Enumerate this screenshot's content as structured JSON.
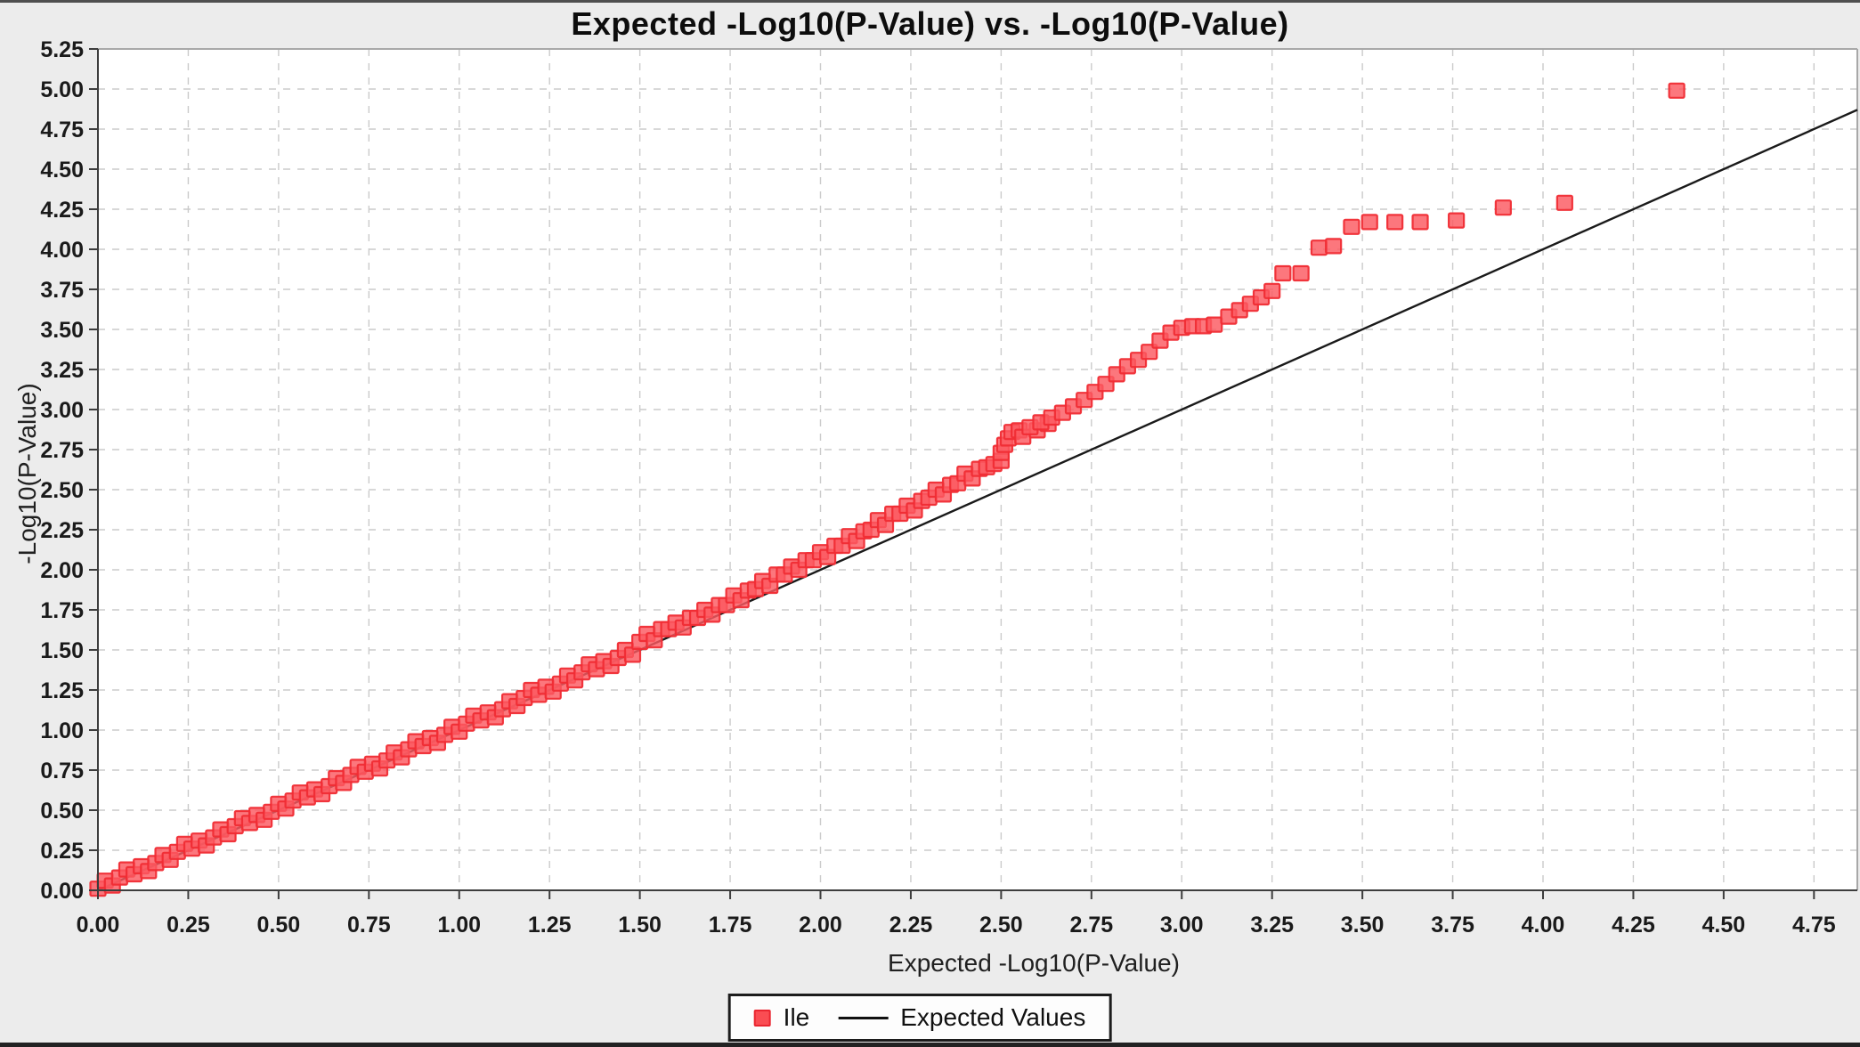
{
  "chart_data": {
    "type": "scatter",
    "title": "Expected -Log10(P-Value) vs. -Log10(P-Value)",
    "xlabel": "Expected -Log10(P-Value)",
    "ylabel": "-Log10(P-Value)",
    "xlim": [
      0,
      4.87
    ],
    "ylim": [
      0,
      5.25
    ],
    "grid": true,
    "x_tick_labels": [
      "0.00",
      "0.25",
      "0.50",
      "0.75",
      "1.00",
      "1.25",
      "1.50",
      "1.75",
      "2.00",
      "2.25",
      "2.50",
      "2.75",
      "3.00",
      "3.25",
      "3.50",
      "3.75",
      "4.00",
      "4.25",
      "4.50",
      "4.75"
    ],
    "y_tick_labels": [
      "0.00",
      "0.25",
      "0.50",
      "0.75",
      "1.00",
      "1.25",
      "1.50",
      "1.75",
      "2.00",
      "2.25",
      "2.50",
      "2.75",
      "3.00",
      "3.25",
      "3.50",
      "3.75",
      "4.00",
      "4.25",
      "4.50",
      "4.75",
      "5.00",
      "5.25"
    ],
    "legend": {
      "position": "bottom",
      "entries": [
        {
          "label": "Ile",
          "type": "marker"
        },
        {
          "label": "Expected Values",
          "type": "line"
        }
      ]
    },
    "colors": {
      "marker_fill": "#fb5960",
      "marker_edge": "#f02c34",
      "expected_line": "#1a1a1a",
      "grid": "#cbcbcb",
      "axis": "#3d3d3d",
      "frame": "#a8a8a8",
      "plot_bg": "#ffffff",
      "outer_bg": "#ececec"
    },
    "series": [
      {
        "name": "Ile",
        "type": "scatter",
        "marker": "square",
        "points": [
          [
            0.0,
            0.01
          ],
          [
            0.02,
            0.06
          ],
          [
            0.04,
            0.03
          ],
          [
            0.06,
            0.08
          ],
          [
            0.08,
            0.13
          ],
          [
            0.1,
            0.1
          ],
          [
            0.12,
            0.15
          ],
          [
            0.14,
            0.12
          ],
          [
            0.16,
            0.17
          ],
          [
            0.18,
            0.22
          ],
          [
            0.2,
            0.19
          ],
          [
            0.22,
            0.24
          ],
          [
            0.24,
            0.29
          ],
          [
            0.26,
            0.26
          ],
          [
            0.28,
            0.31
          ],
          [
            0.3,
            0.28
          ],
          [
            0.32,
            0.33
          ],
          [
            0.34,
            0.38
          ],
          [
            0.36,
            0.35
          ],
          [
            0.38,
            0.4
          ],
          [
            0.4,
            0.45
          ],
          [
            0.42,
            0.42
          ],
          [
            0.44,
            0.47
          ],
          [
            0.46,
            0.44
          ],
          [
            0.48,
            0.49
          ],
          [
            0.5,
            0.54
          ],
          [
            0.52,
            0.51
          ],
          [
            0.54,
            0.56
          ],
          [
            0.56,
            0.61
          ],
          [
            0.58,
            0.58
          ],
          [
            0.6,
            0.63
          ],
          [
            0.62,
            0.6
          ],
          [
            0.64,
            0.65
          ],
          [
            0.66,
            0.7
          ],
          [
            0.68,
            0.67
          ],
          [
            0.7,
            0.72
          ],
          [
            0.72,
            0.77
          ],
          [
            0.74,
            0.74
          ],
          [
            0.76,
            0.79
          ],
          [
            0.78,
            0.76
          ],
          [
            0.8,
            0.81
          ],
          [
            0.82,
            0.86
          ],
          [
            0.84,
            0.83
          ],
          [
            0.86,
            0.88
          ],
          [
            0.88,
            0.93
          ],
          [
            0.9,
            0.9
          ],
          [
            0.92,
            0.95
          ],
          [
            0.94,
            0.92
          ],
          [
            0.96,
            0.97
          ],
          [
            0.98,
            1.02
          ],
          [
            1.0,
            0.99
          ],
          [
            1.02,
            1.04
          ],
          [
            1.04,
            1.09
          ],
          [
            1.06,
            1.06
          ],
          [
            1.08,
            1.11
          ],
          [
            1.1,
            1.08
          ],
          [
            1.12,
            1.13
          ],
          [
            1.14,
            1.18
          ],
          [
            1.16,
            1.15
          ],
          [
            1.18,
            1.2
          ],
          [
            1.2,
            1.25
          ],
          [
            1.22,
            1.22
          ],
          [
            1.24,
            1.27
          ],
          [
            1.26,
            1.24
          ],
          [
            1.28,
            1.29
          ],
          [
            1.3,
            1.34
          ],
          [
            1.32,
            1.31
          ],
          [
            1.34,
            1.36
          ],
          [
            1.36,
            1.41
          ],
          [
            1.38,
            1.38
          ],
          [
            1.4,
            1.43
          ],
          [
            1.42,
            1.4
          ],
          [
            1.44,
            1.45
          ],
          [
            1.46,
            1.5
          ],
          [
            1.48,
            1.47
          ],
          [
            1.5,
            1.55
          ],
          [
            1.52,
            1.6
          ],
          [
            1.54,
            1.56
          ],
          [
            1.56,
            1.63
          ],
          [
            1.58,
            1.63
          ],
          [
            1.6,
            1.67
          ],
          [
            1.62,
            1.64
          ],
          [
            1.64,
            1.7
          ],
          [
            1.66,
            1.7
          ],
          [
            1.68,
            1.75
          ],
          [
            1.7,
            1.72
          ],
          [
            1.72,
            1.78
          ],
          [
            1.74,
            1.78
          ],
          [
            1.76,
            1.84
          ],
          [
            1.78,
            1.81
          ],
          [
            1.8,
            1.87
          ],
          [
            1.82,
            1.88
          ],
          [
            1.84,
            1.93
          ],
          [
            1.86,
            1.9
          ],
          [
            1.88,
            1.97
          ],
          [
            1.9,
            1.97
          ],
          [
            1.92,
            2.02
          ],
          [
            1.94,
            2.0
          ],
          [
            1.96,
            2.06
          ],
          [
            1.98,
            2.06
          ],
          [
            2.0,
            2.11
          ],
          [
            2.02,
            2.08
          ],
          [
            2.04,
            2.15
          ],
          [
            2.06,
            2.15
          ],
          [
            2.08,
            2.21
          ],
          [
            2.1,
            2.18
          ],
          [
            2.12,
            2.24
          ],
          [
            2.14,
            2.25
          ],
          [
            2.16,
            2.31
          ],
          [
            2.18,
            2.28
          ],
          [
            2.2,
            2.35
          ],
          [
            2.22,
            2.35
          ],
          [
            2.24,
            2.4
          ],
          [
            2.26,
            2.37
          ],
          [
            2.28,
            2.43
          ],
          [
            2.3,
            2.45
          ],
          [
            2.32,
            2.5
          ],
          [
            2.34,
            2.47
          ],
          [
            2.36,
            2.53
          ],
          [
            2.38,
            2.54
          ],
          [
            2.4,
            2.6
          ],
          [
            2.42,
            2.57
          ],
          [
            2.44,
            2.63
          ],
          [
            2.46,
            2.64
          ],
          [
            2.48,
            2.66
          ],
          [
            2.5,
            2.68
          ],
          [
            2.5,
            2.73
          ],
          [
            2.51,
            2.78
          ],
          [
            2.52,
            2.82
          ],
          [
            2.53,
            2.86
          ],
          [
            2.55,
            2.87
          ],
          [
            2.56,
            2.83
          ],
          [
            2.6,
            2.87
          ],
          [
            2.63,
            2.91
          ],
          [
            2.58,
            2.89
          ],
          [
            2.61,
            2.92
          ],
          [
            2.64,
            2.95
          ],
          [
            2.67,
            2.98
          ],
          [
            2.7,
            3.02
          ],
          [
            2.73,
            3.06
          ],
          [
            2.76,
            3.11
          ],
          [
            2.79,
            3.16
          ],
          [
            2.82,
            3.22
          ],
          [
            2.85,
            3.27
          ],
          [
            2.88,
            3.31
          ],
          [
            2.91,
            3.36
          ],
          [
            2.94,
            3.43
          ],
          [
            2.97,
            3.48
          ],
          [
            3.0,
            3.51
          ],
          [
            3.03,
            3.52
          ],
          [
            3.06,
            3.52
          ],
          [
            3.09,
            3.53
          ],
          [
            3.13,
            3.58
          ],
          [
            3.16,
            3.62
          ],
          [
            3.19,
            3.66
          ],
          [
            3.22,
            3.7
          ],
          [
            3.25,
            3.74
          ],
          [
            3.28,
            3.85
          ],
          [
            3.33,
            3.85
          ],
          [
            3.38,
            4.01
          ],
          [
            3.42,
            4.02
          ],
          [
            3.47,
            4.14
          ],
          [
            3.52,
            4.17
          ],
          [
            3.59,
            4.17
          ],
          [
            3.66,
            4.17
          ],
          [
            3.76,
            4.18
          ],
          [
            3.89,
            4.26
          ],
          [
            4.06,
            4.29
          ],
          [
            4.37,
            4.99
          ]
        ]
      },
      {
        "name": "Expected Values",
        "type": "line",
        "points": [
          [
            0,
            0
          ],
          [
            4.87,
            4.87
          ]
        ]
      }
    ]
  }
}
